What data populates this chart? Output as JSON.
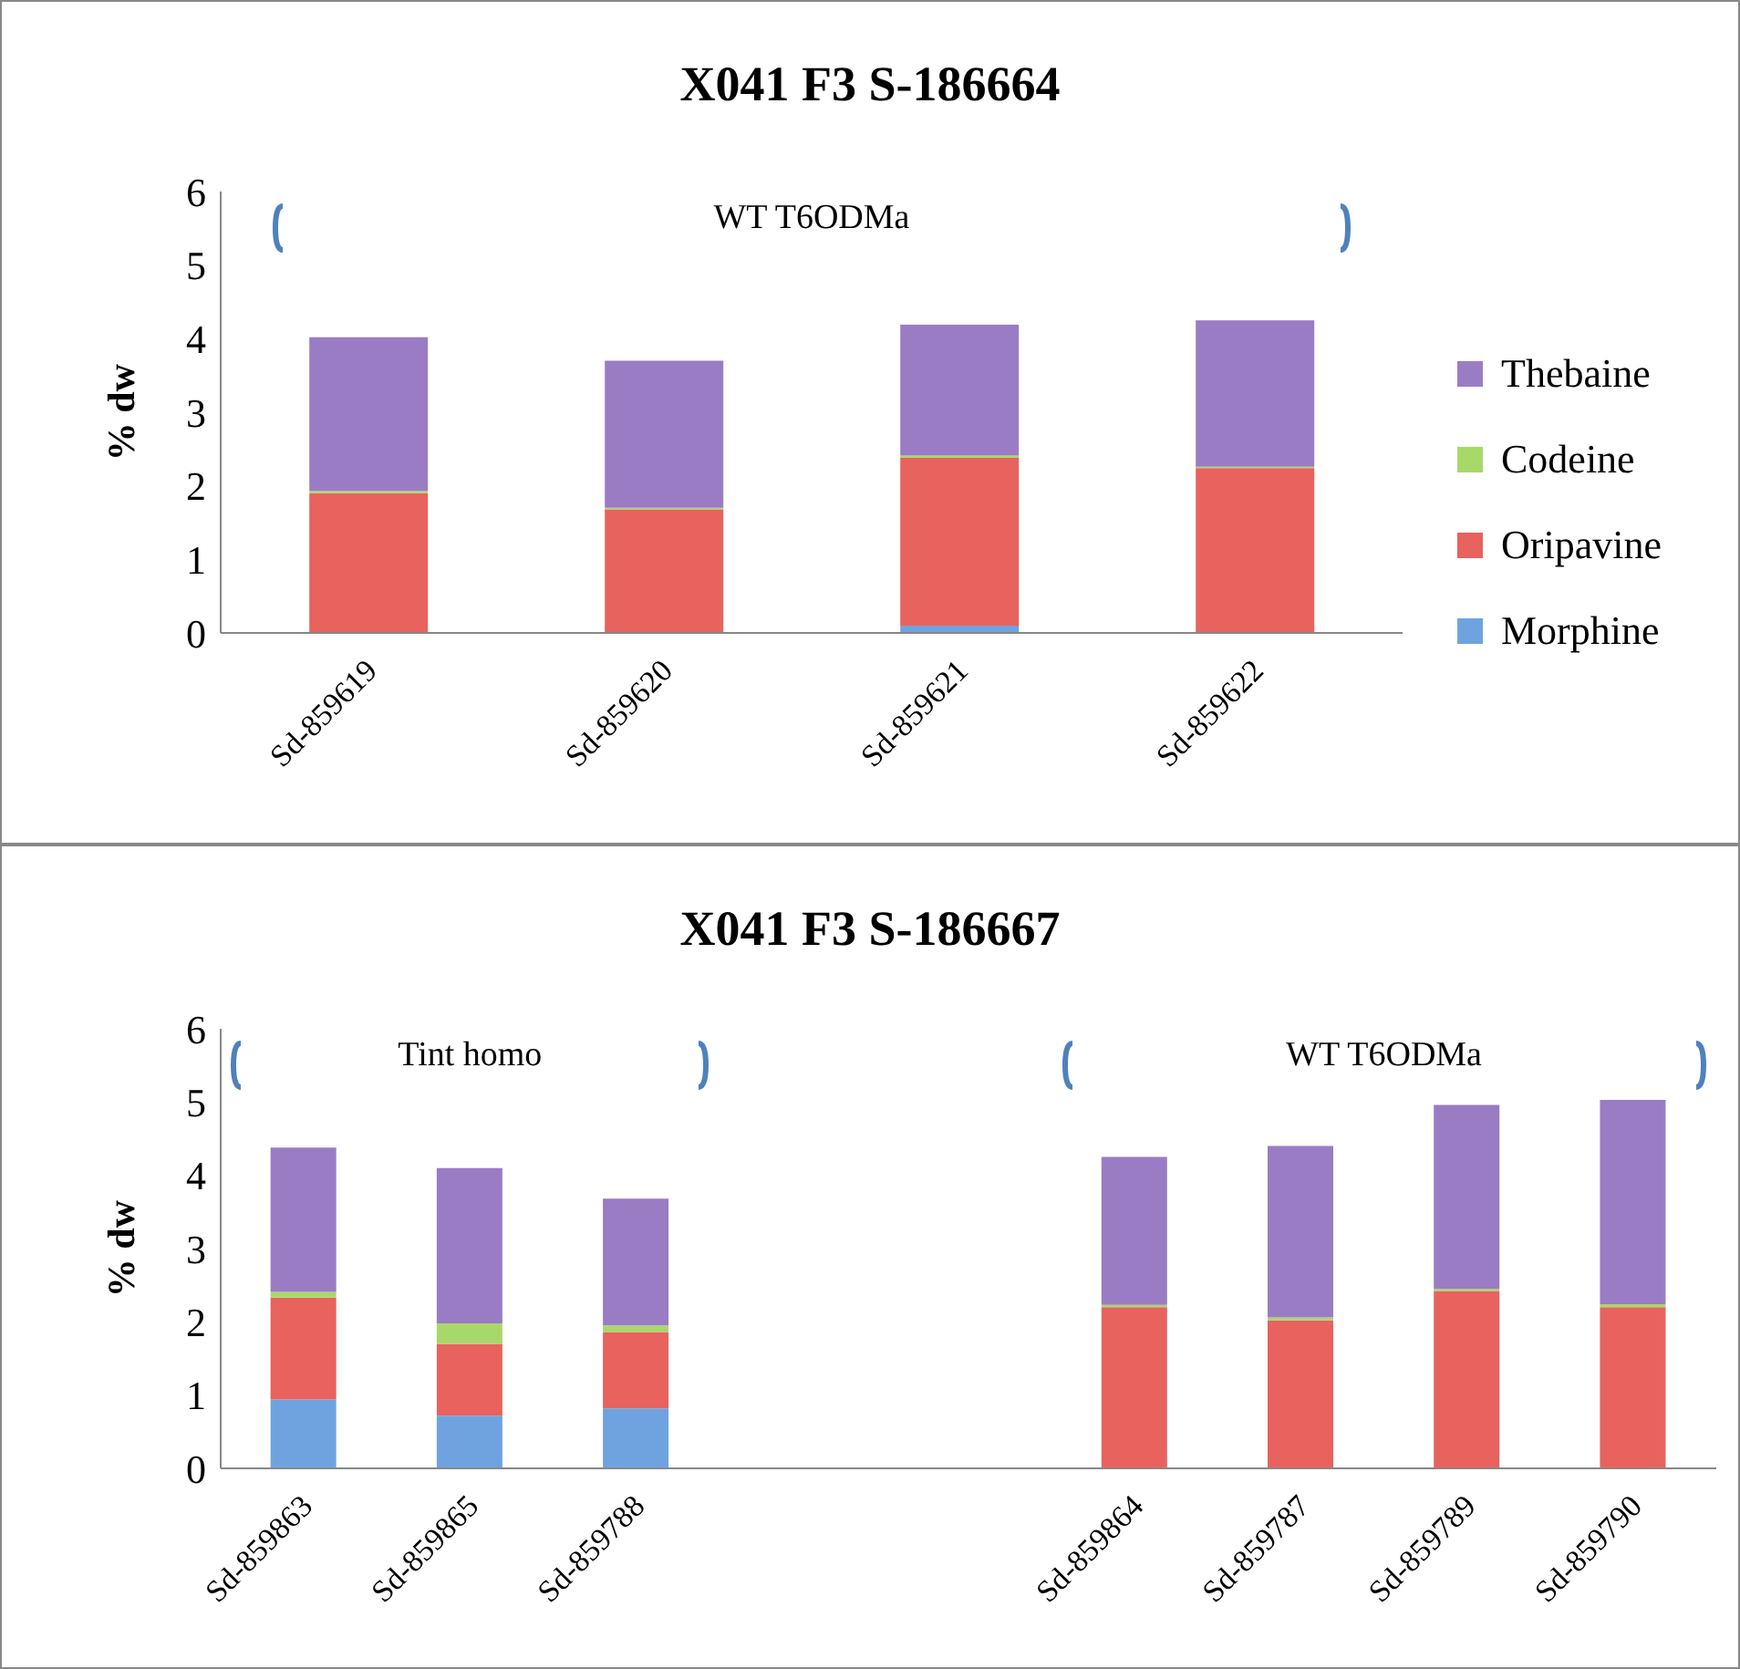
{
  "chart_data": [
    {
      "type": "bar",
      "title": "X041 F3 S-186664",
      "ylabel": "% dw",
      "categories": [
        "Sd-859619",
        "Sd-859620",
        "Sd-859621",
        "Sd-859622"
      ],
      "stacked": true,
      "ylim": [
        0,
        6
      ],
      "yticks": [
        0,
        1,
        2,
        3,
        4,
        5,
        6
      ],
      "grid": false,
      "legend": "right",
      "annotations": [
        "WT T6ODMa"
      ],
      "series": [
        {
          "name": "Morphine",
          "color": "#6fa3e0",
          "values": [
            0,
            0,
            0.1,
            null
          ]
        },
        {
          "name": "Oripavine",
          "color": "#e8625e",
          "values": [
            1.9,
            1.68,
            2.28,
            2.24
          ]
        },
        {
          "name": "Codeine",
          "color": "#a8d86a",
          "values": [
            0.03,
            0.02,
            0.03,
            0.02
          ]
        },
        {
          "name": "Thebaine",
          "color": "#9a7cc4",
          "values": [
            2.09,
            2.0,
            1.78,
            1.99
          ]
        }
      ]
    },
    {
      "type": "bar",
      "title": "X041 F3 S-186667",
      "ylabel": "% dw",
      "categories": [
        "Sd-859863",
        "Sd-859865",
        "Sd-859788",
        null,
        null,
        "Sd-859864",
        "Sd-859787",
        "Sd-859789",
        "Sd-859790"
      ],
      "stacked": true,
      "ylim": [
        0,
        6
      ],
      "yticks": [
        0,
        1,
        2,
        3,
        4,
        5,
        6
      ],
      "grid": false,
      "annotations": [
        "Tint homo",
        "WT T6ODMa"
      ],
      "series": [
        {
          "color": "#6fa3e0",
          "values": [
            0.94,
            0.72,
            0.82,
            null,
            null,
            0,
            0,
            0,
            null
          ]
        },
        {
          "color": "#e8625e",
          "values": [
            1.39,
            0.98,
            1.04,
            null,
            null,
            2.2,
            2.02,
            2.42,
            2.2
          ]
        },
        {
          "color": "#a8d86a",
          "values": [
            0.08,
            0.28,
            0.09,
            null,
            null,
            0.03,
            0.04,
            0.03,
            0.04
          ]
        },
        {
          "color": "#9a7cc4",
          "values": [
            1.97,
            2.12,
            1.73,
            null,
            null,
            2.02,
            2.34,
            2.51,
            2.79
          ]
        }
      ]
    }
  ]
}
